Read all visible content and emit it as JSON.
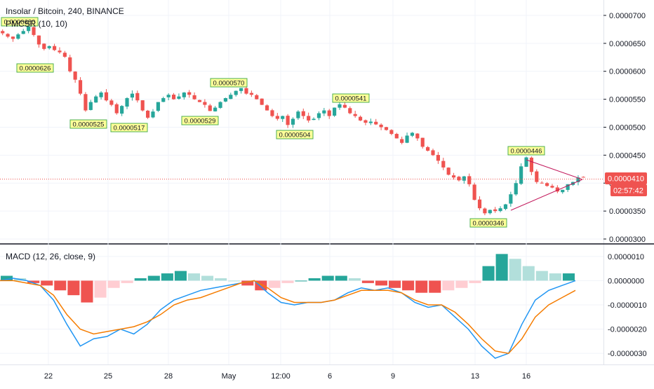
{
  "header": {
    "symbol_line": "Insolar / Bitcoin, 240, BINANCE",
    "indicator_line": "PMCSR (10, 10)"
  },
  "macd_label": "MACD (12, 26, close, 9)",
  "colors": {
    "up": "#26a69a",
    "down": "#ef5350",
    "macd_line": "#2196f3",
    "signal_line": "#f57c00",
    "hist_up_strong": "#26a69a",
    "hist_up_weak": "#b2dfdb",
    "hist_down_strong": "#ef5350",
    "hist_down_weak": "#ffcdd2",
    "annotation_bg": "#ffff99",
    "annotation_border": "#4caf50",
    "price_tag": "#ef5350",
    "triangle": "#c2185b"
  },
  "price_axis": {
    "ticks": [
      "0.0000700",
      "0.0000650",
      "0.0000600",
      "0.0000550",
      "0.0000500",
      "0.0000450",
      "0.0000400",
      "0.0000350",
      "0.0000300"
    ],
    "current_price": "0.0000410",
    "countdown": "02:57:42"
  },
  "macd_axis": {
    "ticks": [
      "0.0000010",
      "0.0000000",
      "-0.0000010",
      "-0.0000020",
      "-0.0000030"
    ]
  },
  "time_axis": {
    "labels": [
      "22",
      "25",
      "28",
      "May",
      "12:00",
      "6",
      "9",
      "13",
      "16"
    ]
  },
  "annotations": [
    {
      "text": "0.0000680",
      "type": "high"
    },
    {
      "text": "0.0000626",
      "type": "low"
    },
    {
      "text": "0.0000525",
      "type": "low"
    },
    {
      "text": "0.0000517",
      "type": "low"
    },
    {
      "text": "0.0000529",
      "type": "low"
    },
    {
      "text": "0.0000570",
      "type": "high"
    },
    {
      "text": "0.0000504",
      "type": "low"
    },
    {
      "text": "0.0000541",
      "type": "high"
    },
    {
      "text": "0.0000446",
      "type": "high"
    },
    {
      "text": "0.0000346",
      "type": "low"
    }
  ],
  "chart_data": [
    {
      "type": "candlestick",
      "title": "Insolar / Bitcoin, 240, BINANCE",
      "x_labels": [
        "22",
        "25",
        "28",
        "May",
        "12:00",
        "6",
        "9",
        "13",
        "16"
      ],
      "ylim": [
        2.95e-05,
        7.15e-05
      ],
      "close_series": [
        6.68e-05,
        6.62e-05,
        6.58e-05,
        6.66e-05,
        6.72e-05,
        6.8e-05,
        6.65e-05,
        6.48e-05,
        6.4e-05,
        6.45e-05,
        6.38e-05,
        6.34e-05,
        6.26e-05,
        6e-05,
        5.85e-05,
        5.6e-05,
        5.3e-05,
        5.45e-05,
        5.55e-05,
        5.62e-05,
        5.48e-05,
        5.4e-05,
        5.25e-05,
        5.38e-05,
        5.52e-05,
        5.6e-05,
        5.48e-05,
        5.3e-05,
        5.17e-05,
        5.28e-05,
        5.45e-05,
        5.52e-05,
        5.58e-05,
        5.5e-05,
        5.55e-05,
        5.62e-05,
        5.58e-05,
        5.5e-05,
        5.45e-05,
        5.4e-05,
        5.29e-05,
        5.35e-05,
        5.45e-05,
        5.52e-05,
        5.58e-05,
        5.65e-05,
        5.7e-05,
        5.6e-05,
        5.58e-05,
        5.5e-05,
        5.4e-05,
        5.3e-05,
        5.2e-05,
        5.15e-05,
        5.2e-05,
        5.04e-05,
        5.15e-05,
        5.28e-05,
        5.2e-05,
        5.12e-05,
        5.15e-05,
        5.25e-05,
        5.3e-05,
        5.2e-05,
        5.35e-05,
        5.41e-05,
        5.35e-05,
        5.25e-05,
        5.2e-05,
        5.12e-05,
        5.08e-05,
        5.1e-05,
        5.05e-05,
        5e-05,
        4.95e-05,
        4.88e-05,
        4.8e-05,
        4.72e-05,
        4.85e-05,
        4.9e-05,
        4.8e-05,
        4.65e-05,
        4.58e-05,
        4.5e-05,
        4.4e-05,
        4.28e-05,
        4.15e-05,
        4.1e-05,
        4.05e-05,
        4.12e-05,
        3.98e-05,
        3.7e-05,
        3.55e-05,
        3.46e-05,
        3.52e-05,
        3.5e-05,
        3.55e-05,
        3.62e-05,
        3.8e-05,
        4e-05,
        4.3e-05,
        4.46e-05,
        4.2e-05,
        4.02e-05,
        4e-05,
        3.95e-05,
        3.92e-05,
        3.85e-05,
        3.88e-05,
        3.98e-05,
        4.02e-05,
        4.1e-05,
        4.1e-05
      ],
      "annotated_highs": [
        6.8e-05,
        5.7e-05,
        5.41e-05,
        4.46e-05
      ],
      "annotated_lows": [
        6.26e-05,
        5.25e-05,
        5.17e-05,
        5.29e-05,
        5.04e-05,
        3.46e-05
      ],
      "current_price": 4.1e-05
    },
    {
      "type": "line",
      "title": "MACD (12, 26, close, 9)",
      "ylim": [
        -3.4e-06,
        1.4e-06
      ],
      "series": [
        {
          "values": [
            0.0,
            1e-07,
            0.0,
            -2e-07,
            -8e-07,
            -1.8e-06,
            -2.7e-06,
            -2.4e-06,
            -2.3e-06,
            -2e-06,
            -2.2e-06,
            -1.8e-06,
            -1.2e-06,
            -8e-07,
            -6e-07,
            -4e-07,
            -3e-07,
            -2e-07,
            -1e-07,
            0.0,
            -5e-07,
            -9e-07,
            -1e-06,
            -9e-07,
            -9e-07,
            -8e-07,
            -5e-07,
            -3e-07,
            -4e-07,
            -3e-07,
            -5e-07,
            -9e-07,
            -1.1e-06,
            -1e-06,
            -1.5e-06,
            -2e-06,
            -2.7e-06,
            -3.2e-06,
            -3e-06,
            -1.8e-06,
            -8e-07,
            -4e-07,
            -2e-07,
            0.0
          ]
        },
        {
          "values": [
            0.0,
            0.0,
            -1e-07,
            -2e-07,
            -6e-07,
            -1.4e-06,
            -2e-06,
            -2.2e-06,
            -2.1e-06,
            -2e-06,
            -1.9e-06,
            -1.7e-06,
            -1.4e-06,
            -1e-06,
            -8e-07,
            -7e-07,
            -5e-07,
            -3e-07,
            -1e-07,
            0.0,
            -3e-07,
            -7e-07,
            -9e-07,
            -9e-07,
            -9e-07,
            -8e-07,
            -6e-07,
            -4e-07,
            -4e-07,
            -4e-07,
            -5e-07,
            -8e-07,
            -1e-06,
            -1e-06,
            -1.3e-06,
            -1.8e-06,
            -2.4e-06,
            -2.9e-06,
            -3e-06,
            -2.4e-06,
            -1.5e-06,
            -1e-06,
            -7e-07,
            -4e-07
          ]
        }
      ],
      "histogram": [
        2e-07,
        1e-07,
        -1e-07,
        -2e-07,
        -4e-07,
        -6e-07,
        -9e-07,
        -7e-07,
        -3e-07,
        -1e-07,
        1e-07,
        2e-07,
        3e-07,
        4e-07,
        3e-07,
        2e-07,
        1e-07,
        0.0,
        -2e-07,
        -4e-07,
        -3e-07,
        -1e-07,
        0.0,
        1e-07,
        2e-07,
        2e-07,
        1e-07,
        -1e-07,
        -2e-07,
        -3e-07,
        -4e-07,
        -5e-07,
        -5e-07,
        -4e-07,
        -3e-07,
        -1e-07,
        6e-07,
        1.1e-06,
        9e-07,
        6e-07,
        4e-07,
        3e-07,
        3e-07
      ]
    }
  ]
}
